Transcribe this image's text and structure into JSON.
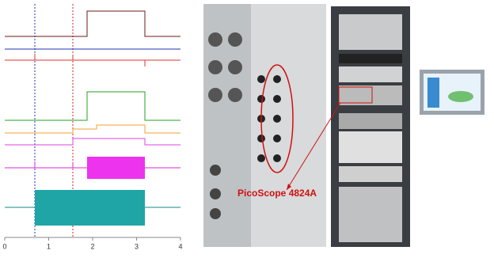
{
  "scope": {
    "xlim": [
      0,
      4
    ],
    "xticks": [
      0,
      1,
      2,
      3,
      4
    ]
  },
  "callout": {
    "label": "PicoScope 4824A"
  }
}
